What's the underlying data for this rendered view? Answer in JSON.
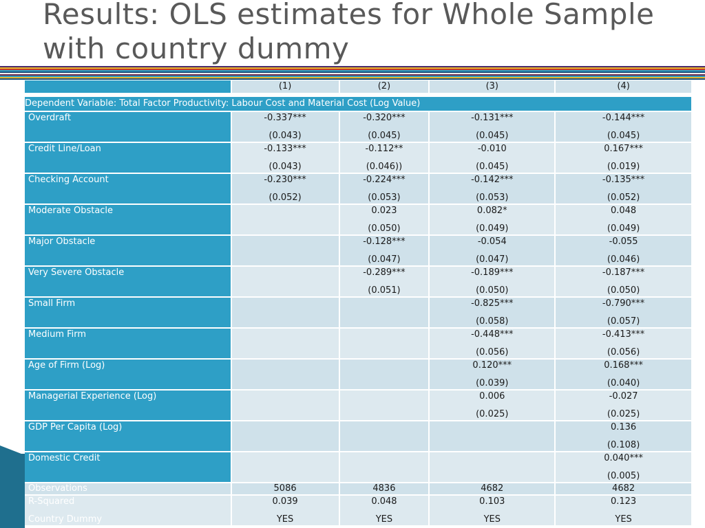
{
  "title": {
    "line1": "Results: OLS estimates for Whole Sample",
    "line2": "with country dummy"
  },
  "stripe_colors": [
    "#4b2a6b",
    "#e8b52a",
    "#c0392b",
    "#2e9fc6",
    "#1f4f7a",
    "#f2f2f2",
    "#6b2a4b",
    "#2e9fc6",
    "#e8b52a",
    "#1f4f7a"
  ],
  "table": {
    "columns": [
      "(1)",
      "(2)",
      "(3)",
      "(4)"
    ],
    "dependent_variable": "Dependent Variable: Total Factor Productivity: Labour Cost and Material Cost (Log Value)",
    "rows": [
      {
        "label": "Overdraft",
        "cells": [
          {
            "coef": "-0.337***",
            "se": "(0.043)"
          },
          {
            "coef": "-0.320***",
            "se": "(0.045)"
          },
          {
            "coef": "-0.131***",
            "se": "(0.045)"
          },
          {
            "coef": "-0.144***",
            "se": "(0.045)"
          }
        ]
      },
      {
        "label": "Credit Line/Loan",
        "cells": [
          {
            "coef": "-0.133***",
            "se": "(0.043)"
          },
          {
            "coef": "-0.112**",
            "se": "(0.046))"
          },
          {
            "coef": "-0.010",
            "se": "(0.045)"
          },
          {
            "coef": "0.167***",
            "se": "(0.019)"
          }
        ]
      },
      {
        "label": "Checking Account",
        "cells": [
          {
            "coef": "-0.230***",
            "se": "(0.052)"
          },
          {
            "coef": "-0.224***",
            "se": "(0.053)"
          },
          {
            "coef": "-0.142***",
            "se": "(0.053)"
          },
          {
            "coef": "-0.135***",
            "se": "(0.052)"
          }
        ]
      },
      {
        "label": "Moderate Obstacle",
        "cells": [
          {
            "coef": "",
            "se": ""
          },
          {
            "coef": "0.023",
            "se": "(0.050)"
          },
          {
            "coef": "0.082*",
            "se": "(0.049)"
          },
          {
            "coef": "0.048",
            "se": "(0.049)"
          }
        ]
      },
      {
        "label": "Major Obstacle",
        "cells": [
          {
            "coef": "",
            "se": ""
          },
          {
            "coef": "-0.128***",
            "se": "(0.047)"
          },
          {
            "coef": "-0.054",
            "se": "(0.047)"
          },
          {
            "coef": "-0.055",
            "se": "(0.046)"
          }
        ]
      },
      {
        "label": "Very Severe Obstacle",
        "cells": [
          {
            "coef": "",
            "se": ""
          },
          {
            "coef": "-0.289***",
            "se": "(0.051)"
          },
          {
            "coef": "-0.189***",
            "se": "(0.050)"
          },
          {
            "coef": "-0.187***",
            "se": "(0.050)"
          }
        ]
      },
      {
        "label": "Small Firm",
        "cells": [
          {
            "coef": "",
            "se": ""
          },
          {
            "coef": "",
            "se": ""
          },
          {
            "coef": "-0.825***",
            "se": "(0.058)"
          },
          {
            "coef": "-0.790***",
            "se": "(0.057)"
          }
        ]
      },
      {
        "label": "Medium Firm",
        "cells": [
          {
            "coef": "",
            "se": ""
          },
          {
            "coef": "",
            "se": ""
          },
          {
            "coef": "-0.448***",
            "se": "(0.056)"
          },
          {
            "coef": "-0.413***",
            "se": "(0.056)"
          }
        ]
      },
      {
        "label": "Age of Firm (Log)",
        "cells": [
          {
            "coef": "",
            "se": ""
          },
          {
            "coef": "",
            "se": ""
          },
          {
            "coef": "0.120***",
            "se": "(0.039)"
          },
          {
            "coef": "0.168***",
            "se": "(0.040)"
          }
        ]
      },
      {
        "label": "Managerial Experience (Log)",
        "cells": [
          {
            "coef": "",
            "se": ""
          },
          {
            "coef": "",
            "se": ""
          },
          {
            "coef": "0.006",
            "se": "(0.025)"
          },
          {
            "coef": "-0.027",
            "se": "(0.025)"
          }
        ]
      },
      {
        "label": "GDP Per Capita (Log)",
        "cells": [
          {
            "coef": "",
            "se": ""
          },
          {
            "coef": "",
            "se": ""
          },
          {
            "coef": "",
            "se": ""
          },
          {
            "coef": "0.136",
            "se": "(0.108)"
          }
        ]
      },
      {
        "label": "Domestic Credit",
        "cells": [
          {
            "coef": "",
            "se": ""
          },
          {
            "coef": "",
            "se": ""
          },
          {
            "coef": "",
            "se": ""
          },
          {
            "coef": "0.040***",
            "se": "(0.005)"
          }
        ]
      }
    ],
    "observations": {
      "label": "Observations",
      "values": [
        "5086",
        "4836",
        "4682",
        "4682"
      ]
    },
    "r_squared": {
      "label": "R-Squared",
      "values": [
        "0.039",
        "0.048",
        "0.103",
        "0.123"
      ]
    },
    "country_dummy": {
      "label": "Country Dummy",
      "values": [
        "YES",
        "YES",
        "YES",
        "YES"
      ]
    }
  }
}
